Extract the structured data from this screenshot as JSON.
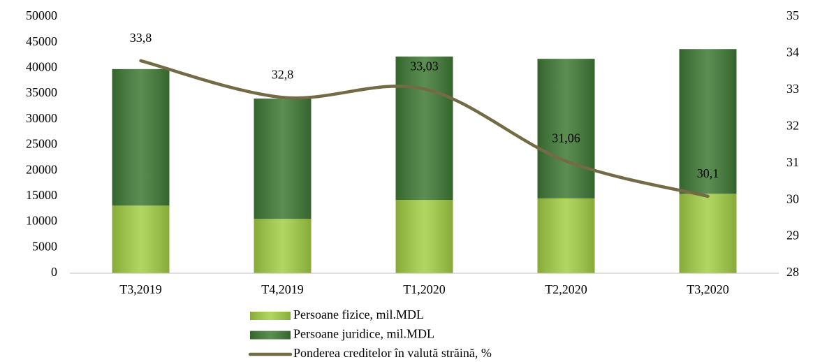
{
  "chart_data": {
    "type": "bar",
    "stacked": true,
    "categories": [
      "T3,2019",
      "T4,2019",
      "T1,2020",
      "T2,2020",
      "T3,2020"
    ],
    "series": [
      {
        "name": "Persoane fizice, mil.MDL",
        "color": "#a4cf45",
        "values": [
          13200,
          10600,
          14300,
          14600,
          15500
        ]
      },
      {
        "name": "Persoane juridice, mil.MDL",
        "color": "#3f7a35",
        "values": [
          26600,
          23450,
          27950,
          27200,
          28200
        ]
      },
      {
        "name": "Ponderea creditelor în valută străină, %",
        "color": "#736b46",
        "type": "line",
        "axis": "y2",
        "smooth": true,
        "values": [
          33.8,
          32.8,
          33.03,
          31.06,
          30.1
        ],
        "value_labels": [
          "33,8",
          "32,8",
          "33,03",
          "31,06",
          "30,1"
        ]
      }
    ],
    "ylim": [
      0,
      50000
    ],
    "yticks": [
      0,
      5000,
      10000,
      15000,
      20000,
      25000,
      30000,
      35000,
      40000,
      45000,
      50000
    ],
    "y2lim": [
      28,
      35
    ],
    "y2ticks": [
      28,
      29,
      30,
      31,
      32,
      33,
      34,
      35
    ],
    "grid": false,
    "legend": "bottom"
  }
}
